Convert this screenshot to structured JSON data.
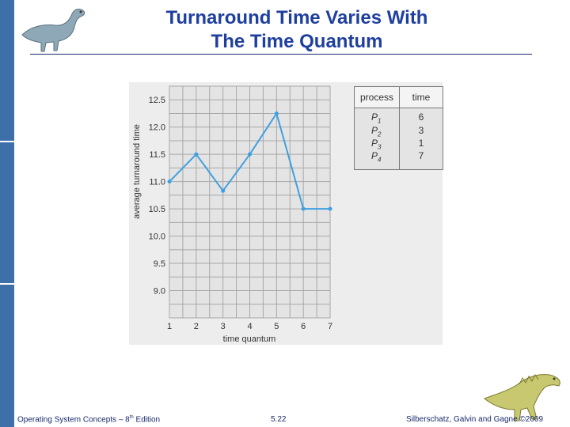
{
  "slide": {
    "title_line1": "Turnaround Time Varies With",
    "title_line2": "The Time Quantum"
  },
  "process_table": {
    "headers": [
      "process",
      "time"
    ],
    "rows": [
      {
        "name": "P",
        "sub": "1",
        "time": "6"
      },
      {
        "name": "P",
        "sub": "2",
        "time": "3"
      },
      {
        "name": "P",
        "sub": "3",
        "time": "1"
      },
      {
        "name": "P",
        "sub": "4",
        "time": "7"
      }
    ]
  },
  "footer": {
    "left_prefix": "Operating System Concepts – 8",
    "left_sup": "th",
    "left_suffix": " Edition",
    "page": "5.22",
    "right": "Silberschatz, Galvin and Gagne ©2009"
  },
  "colors": {
    "line": "#3ea0e0",
    "grid": "#a8a8a8",
    "title": "#1f3f9f",
    "side_bar": "#3d6fa8"
  },
  "chart_data": {
    "type": "line",
    "x": [
      1,
      2,
      3,
      4,
      5,
      6,
      7
    ],
    "series": [
      {
        "values": [
          11.0,
          11.5,
          10.83,
          11.5,
          12.25,
          10.5,
          10.5
        ]
      }
    ],
    "xlabel": "time quantum",
    "ylabel": "average turnaround time",
    "x_ticks": [
      "1",
      "2",
      "3",
      "4",
      "5",
      "6",
      "7"
    ],
    "y_ticks": [
      "9.0",
      "9.5",
      "10.0",
      "10.5",
      "11.0",
      "11.5",
      "12.0",
      "12.5"
    ],
    "xlim": [
      1,
      7
    ],
    "ylim": [
      8.5,
      12.75
    ],
    "grid": true
  }
}
